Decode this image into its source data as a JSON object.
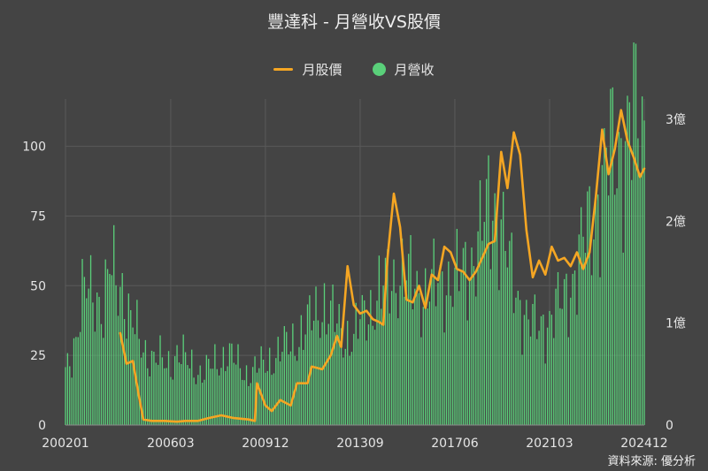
{
  "chart_data": {
    "type": "bar+line",
    "title": "豐達科 - 月營收VS股價",
    "source_note": "資料來源: 優分析",
    "colors": {
      "background": "#444444",
      "price_line": "#f5a623",
      "revenue_bar": "#5ad07a",
      "grid": "#5a5a5a"
    },
    "legend": {
      "placement": "top-center",
      "items": [
        {
          "label": "月股價",
          "marker": "line",
          "color": "#f5a623"
        },
        {
          "label": "月營收",
          "marker": "dot",
          "color": "#5ad07a"
        }
      ]
    },
    "x_axis": {
      "start": "2002-01",
      "end": "2024-12",
      "tick_labels": [
        "200201",
        "200603",
        "200912",
        "201309",
        "201706",
        "202103",
        "202412"
      ]
    },
    "y_axis_left": {
      "label": "",
      "range": [
        0,
        117
      ],
      "ticks": [
        0,
        25,
        50,
        75,
        100
      ],
      "tick_labels": [
        "0",
        "25",
        "50",
        "75",
        "100"
      ]
    },
    "y_axis_right": {
      "label": "",
      "range": [
        0,
        3.2
      ],
      "ticks": [
        0,
        1,
        2,
        3
      ],
      "tick_labels": [
        "0",
        "1億",
        "2億",
        "3億"
      ]
    },
    "grid": true,
    "series": [
      {
        "name": "月營收",
        "type": "bar",
        "axis": "right",
        "unit": "億",
        "points": [
          [
            "2002-01",
            0.55
          ],
          [
            "2002-06",
            0.85
          ],
          [
            "2002-10",
            1.3
          ],
          [
            "2003-03",
            1.35
          ],
          [
            "2003-07",
            1.1
          ],
          [
            "2003-10",
            1.5
          ],
          [
            "2004-04",
            1.4
          ],
          [
            "2004-07",
            1.05
          ],
          [
            "2005-01",
            0.8
          ],
          [
            "2005-06",
            0.65
          ],
          [
            "2006-03",
            0.6
          ],
          [
            "2006-06",
            0.7
          ],
          [
            "2007-06",
            0.5
          ],
          [
            "2008-06",
            0.7
          ],
          [
            "2009-03",
            0.5
          ],
          [
            "2009-12",
            0.6
          ],
          [
            "2010-06",
            0.7
          ],
          [
            "2011-06",
            0.9
          ],
          [
            "2012-03",
            1.2
          ],
          [
            "2012-06",
            1.1
          ],
          [
            "2013-01",
            0.9
          ],
          [
            "2013-06",
            0.85
          ],
          [
            "2013-09",
            1.0
          ],
          [
            "2014-03",
            1.2
          ],
          [
            "2014-09",
            1.35
          ],
          [
            "2015-03",
            1.5
          ],
          [
            "2015-09",
            1.4
          ],
          [
            "2016-03",
            1.3
          ],
          [
            "2016-09",
            1.35
          ],
          [
            "2017-03",
            1.45
          ],
          [
            "2017-06",
            1.4
          ],
          [
            "2017-12",
            1.55
          ],
          [
            "2018-03",
            1.7
          ],
          [
            "2018-06",
            1.85
          ],
          [
            "2018-10",
            2.1
          ],
          [
            "2019-01",
            2.2
          ],
          [
            "2019-04",
            2.0
          ],
          [
            "2019-08",
            1.5
          ],
          [
            "2020-01",
            1.2
          ],
          [
            "2020-06",
            1.0
          ],
          [
            "2020-09",
            0.95
          ],
          [
            "2021-03",
            1.05
          ],
          [
            "2021-09",
            1.2
          ],
          [
            "2022-03",
            1.5
          ],
          [
            "2022-09",
            1.9
          ],
          [
            "2023-03",
            2.3
          ],
          [
            "2023-09",
            2.7
          ],
          [
            "2024-03",
            2.8
          ],
          [
            "2024-08",
            3.0
          ],
          [
            "2024-12",
            2.9
          ]
        ]
      },
      {
        "name": "月股價",
        "type": "line",
        "axis": "left",
        "points": [
          [
            "2004-03",
            33
          ],
          [
            "2004-06",
            22
          ],
          [
            "2004-09",
            23
          ],
          [
            "2004-12",
            10
          ],
          [
            "2005-02",
            2
          ],
          [
            "2005-06",
            1.5
          ],
          [
            "2005-12",
            1.5
          ],
          [
            "2006-06",
            1.2
          ],
          [
            "2006-10",
            1.5
          ],
          [
            "2007-04",
            1.5
          ],
          [
            "2007-09",
            2.5
          ],
          [
            "2008-03",
            3.5
          ],
          [
            "2008-09",
            2.5
          ],
          [
            "2009-04",
            2.0
          ],
          [
            "2009-07",
            1.5
          ],
          [
            "2009-08",
            15
          ],
          [
            "2009-12",
            7
          ],
          [
            "2010-03",
            5
          ],
          [
            "2010-07",
            9
          ],
          [
            "2010-12",
            7
          ],
          [
            "2011-03",
            15
          ],
          [
            "2011-08",
            15
          ],
          [
            "2011-10",
            21
          ],
          [
            "2012-03",
            20
          ],
          [
            "2012-07",
            25
          ],
          [
            "2012-10",
            32
          ],
          [
            "2012-12",
            28
          ],
          [
            "2013-03",
            57
          ],
          [
            "2013-06",
            43
          ],
          [
            "2013-09",
            40
          ],
          [
            "2013-12",
            41
          ],
          [
            "2014-03",
            38
          ],
          [
            "2014-06",
            37
          ],
          [
            "2014-08",
            36
          ],
          [
            "2014-10",
            60
          ],
          [
            "2015-01",
            83
          ],
          [
            "2015-04",
            71
          ],
          [
            "2015-07",
            45
          ],
          [
            "2015-10",
            44
          ],
          [
            "2016-01",
            50
          ],
          [
            "2016-04",
            42
          ],
          [
            "2016-07",
            54
          ],
          [
            "2016-10",
            52
          ],
          [
            "2017-01",
            64
          ],
          [
            "2017-04",
            62
          ],
          [
            "2017-07",
            56
          ],
          [
            "2017-10",
            55
          ],
          [
            "2018-01",
            52
          ],
          [
            "2018-04",
            55
          ],
          [
            "2018-07",
            60
          ],
          [
            "2018-10",
            65
          ],
          [
            "2019-01",
            66
          ],
          [
            "2019-04",
            98
          ],
          [
            "2019-07",
            85
          ],
          [
            "2019-10",
            105
          ],
          [
            "2020-01",
            97
          ],
          [
            "2020-04",
            70
          ],
          [
            "2020-07",
            53
          ],
          [
            "2020-10",
            59
          ],
          [
            "2021-01",
            54
          ],
          [
            "2021-04",
            64
          ],
          [
            "2021-07",
            59
          ],
          [
            "2021-10",
            60
          ],
          [
            "2022-01",
            57
          ],
          [
            "2022-04",
            62
          ],
          [
            "2022-07",
            56
          ],
          [
            "2022-10",
            62
          ],
          [
            "2023-01",
            82
          ],
          [
            "2023-04",
            106
          ],
          [
            "2023-07",
            90
          ],
          [
            "2023-10",
            99
          ],
          [
            "2024-01",
            113
          ],
          [
            "2024-04",
            102
          ],
          [
            "2024-07",
            96
          ],
          [
            "2024-10",
            89
          ],
          [
            "2024-12",
            92
          ]
        ]
      }
    ]
  }
}
